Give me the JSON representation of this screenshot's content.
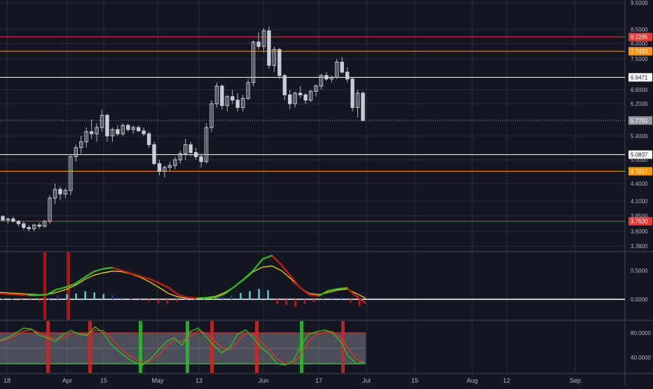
{
  "colors": {
    "background": "#131722",
    "grid": "#2a2e39",
    "candle": "#c8ccd6",
    "wick": "#b2b5be",
    "red_level": "#e53935",
    "orange_level": "#ff9800",
    "white_level": "#ffffff",
    "gray_level": "#9598a1",
    "axis_text": "#b2b5be",
    "macd_line": "#2bc21a",
    "signal_line": "#f5d000",
    "cross_red": "#d01010",
    "hist_pos_strong": "#5fd0e0",
    "hist_pos_weak": "#1f3fb0",
    "hist_neg": "#d01818",
    "stoch_k": "#2bc21a",
    "stoch_d": "#e03030",
    "stoch_band": "#7a7e88",
    "vbar_red": "#c62828",
    "vbar_green": "#2eb82e"
  },
  "chart_data": [
    {
      "type": "candlestick",
      "title": "",
      "x_tick_labels": [
        "18",
        "Apr",
        "15",
        "May",
        "13",
        "Jun",
        "17",
        "Jul",
        "15",
        "Aug",
        "12",
        "Sep"
      ],
      "y_tick_labels": [
        "9.5000",
        "8.5000",
        "8.0000",
        "7.5000",
        "6.6000",
        "6.2000",
        "5.4000",
        "5.0000",
        "4.4000",
        "4.1000",
        "3.8500",
        "3.6000",
        "3.3800"
      ],
      "y_tick_values": [
        9.5,
        8.5,
        8.0,
        7.5,
        6.6,
        6.2,
        5.4,
        5.0,
        4.4,
        4.1,
        3.85,
        3.6,
        3.38
      ],
      "last_price": 5.7701,
      "last_price_label": "5.7701",
      "horizontal_levels": [
        {
          "value": 8.2285,
          "label": "8.2285",
          "color": "red"
        },
        {
          "value": 7.7433,
          "label": "7.7433",
          "color": "orange"
        },
        {
          "value": 6.9471,
          "label": "6.9471",
          "color": "white"
        },
        {
          "value": 5.0837,
          "label": "5.0837",
          "color": "white"
        },
        {
          "value": 4.7017,
          "label": "4.7017",
          "color": "orange"
        },
        {
          "value": 3.762,
          "label": "3.7620",
          "color": "red"
        }
      ],
      "ohlc": [
        [
          3.84,
          3.86,
          3.76,
          3.78
        ],
        [
          3.78,
          3.82,
          3.72,
          3.8
        ],
        [
          3.8,
          3.84,
          3.74,
          3.76
        ],
        [
          3.76,
          3.78,
          3.68,
          3.72
        ],
        [
          3.72,
          3.76,
          3.62,
          3.66
        ],
        [
          3.66,
          3.7,
          3.6,
          3.64
        ],
        [
          3.64,
          3.72,
          3.6,
          3.7
        ],
        [
          3.7,
          3.74,
          3.64,
          3.68
        ],
        [
          3.68,
          3.78,
          3.66,
          3.76
        ],
        [
          3.76,
          4.2,
          3.72,
          4.15
        ],
        [
          4.15,
          4.4,
          4.05,
          4.3
        ],
        [
          4.3,
          4.35,
          4.12,
          4.22
        ],
        [
          4.22,
          4.32,
          4.15,
          4.28
        ],
        [
          4.28,
          5.1,
          4.2,
          5.05
        ],
        [
          5.05,
          5.25,
          4.95,
          5.2
        ],
        [
          5.2,
          5.4,
          5.1,
          5.3
        ],
        [
          5.3,
          5.6,
          5.2,
          5.5
        ],
        [
          5.5,
          5.8,
          5.35,
          5.45
        ],
        [
          5.45,
          5.7,
          5.3,
          5.6
        ],
        [
          5.6,
          6.05,
          5.5,
          5.9
        ],
        [
          5.9,
          5.95,
          5.3,
          5.4
        ],
        [
          5.4,
          5.6,
          5.3,
          5.55
        ],
        [
          5.55,
          5.65,
          5.4,
          5.45
        ],
        [
          5.45,
          5.7,
          5.4,
          5.65
        ],
        [
          5.65,
          5.7,
          5.5,
          5.55
        ],
        [
          5.55,
          5.65,
          5.45,
          5.6
        ],
        [
          5.6,
          5.65,
          5.5,
          5.52
        ],
        [
          5.52,
          5.6,
          5.4,
          5.45
        ],
        [
          5.45,
          5.5,
          5.2,
          5.25
        ],
        [
          5.25,
          5.3,
          4.85,
          4.9
        ],
        [
          4.9,
          5.0,
          4.6,
          4.7
        ],
        [
          4.7,
          4.85,
          4.55,
          4.8
        ],
        [
          4.8,
          4.95,
          4.7,
          4.85
        ],
        [
          4.85,
          5.05,
          4.75,
          5.0
        ],
        [
          5.0,
          5.15,
          4.9,
          5.1
        ],
        [
          5.1,
          5.35,
          5.0,
          5.25
        ],
        [
          5.25,
          5.3,
          5.05,
          5.12
        ],
        [
          5.12,
          5.2,
          5.0,
          5.05
        ],
        [
          5.05,
          5.1,
          4.8,
          4.95
        ],
        [
          4.95,
          5.7,
          4.9,
          5.6
        ],
        [
          5.6,
          6.3,
          5.5,
          6.2
        ],
        [
          6.2,
          6.8,
          6.1,
          6.7
        ],
        [
          6.7,
          6.75,
          6.05,
          6.15
        ],
        [
          6.15,
          6.45,
          6.0,
          6.4
        ],
        [
          6.4,
          6.6,
          6.2,
          6.3
        ],
        [
          6.3,
          6.5,
          6.0,
          6.1
        ],
        [
          6.1,
          6.45,
          6.0,
          6.35
        ],
        [
          6.35,
          6.9,
          6.3,
          6.8
        ],
        [
          6.8,
          8.1,
          6.7,
          8.05
        ],
        [
          8.05,
          8.4,
          7.8,
          7.9
        ],
        [
          7.9,
          8.55,
          7.7,
          8.45
        ],
        [
          8.45,
          8.6,
          7.2,
          7.3
        ],
        [
          7.3,
          7.9,
          7.1,
          7.8
        ],
        [
          7.8,
          7.85,
          6.9,
          7.0
        ],
        [
          7.0,
          7.05,
          6.3,
          6.45
        ],
        [
          6.45,
          6.6,
          6.05,
          6.2
        ],
        [
          6.2,
          6.55,
          6.1,
          6.5
        ],
        [
          6.5,
          6.7,
          6.35,
          6.45
        ],
        [
          6.45,
          6.5,
          6.2,
          6.3
        ],
        [
          6.3,
          6.6,
          6.25,
          6.55
        ],
        [
          6.55,
          6.75,
          6.4,
          6.7
        ],
        [
          6.7,
          7.05,
          6.6,
          7.0
        ],
        [
          7.0,
          7.1,
          6.85,
          6.9
        ],
        [
          6.9,
          7.0,
          6.8,
          6.95
        ],
        [
          6.95,
          7.5,
          6.9,
          7.4
        ],
        [
          7.4,
          7.55,
          7.05,
          7.1
        ],
        [
          7.1,
          7.25,
          6.8,
          6.9
        ],
        [
          6.9,
          6.95,
          6.0,
          6.1
        ],
        [
          6.1,
          6.6,
          5.85,
          6.5
        ],
        [
          6.5,
          6.55,
          5.75,
          5.77
        ]
      ]
    },
    {
      "type": "line",
      "title": "",
      "indicator": "MACD",
      "y_tick_labels": [
        "0.5000",
        "0.0000"
      ],
      "y_tick_values": [
        0.5,
        0.0
      ],
      "series": [
        {
          "color": "green",
          "values": [
            0.1,
            0.09,
            0.08,
            0.07,
            0.07,
            0.08,
            0.17,
            0.21,
            0.27,
            0.38,
            0.48,
            0.53,
            0.55,
            0.5,
            0.45,
            0.4,
            0.35,
            0.28,
            0.2,
            0.08,
            0.03,
            0.02,
            0.02,
            0.03,
            0.1,
            0.22,
            0.35,
            0.5,
            0.7,
            0.76,
            0.6,
            0.4,
            0.2,
            0.08,
            0.06,
            0.15,
            0.18,
            0.2,
            0.05,
            -0.07
          ]
        },
        {
          "color": "yellow",
          "values": [
            0.12,
            0.11,
            0.1,
            0.09,
            0.08,
            0.08,
            0.12,
            0.17,
            0.24,
            0.34,
            0.42,
            0.46,
            0.49,
            0.48,
            0.44,
            0.38,
            0.3,
            0.2,
            0.1,
            0.04,
            0.02,
            0.02,
            0.03,
            0.05,
            0.12,
            0.22,
            0.34,
            0.48,
            0.56,
            0.58,
            0.5,
            0.36,
            0.2,
            0.1,
            0.08,
            0.12,
            0.16,
            0.18,
            0.1,
            0.02
          ]
        }
      ],
      "histogram": [
        0.01,
        0.01,
        -0.01,
        -0.02,
        -0.03,
        0.0,
        0.07,
        0.09,
        0.1,
        0.14,
        0.12,
        0.09,
        0.07,
        0.04,
        0.01,
        -0.01,
        -0.04,
        -0.07,
        -0.08,
        -0.04,
        0.0,
        0.01,
        0.01,
        0.02,
        0.04,
        0.07,
        0.11,
        0.14,
        0.18,
        0.16,
        -0.08,
        -0.1,
        -0.13,
        -0.08,
        -0.05,
        0.02,
        0.03,
        0.04,
        -0.06,
        -0.12
      ]
    },
    {
      "type": "line",
      "title": "",
      "indicator": "Stochastic",
      "y_tick_labels": [
        "80.0000",
        "40.0000"
      ],
      "y_tick_values": [
        80,
        40
      ],
      "band": [
        30,
        80
      ],
      "series": [
        {
          "color": "green",
          "values": [
            68,
            72,
            80,
            88,
            86,
            76,
            72,
            66,
            78,
            84,
            78,
            76,
            90,
            80,
            62,
            50,
            40,
            32,
            28,
            38,
            52,
            66,
            72,
            60,
            82,
            88,
            74,
            60,
            48,
            56,
            78,
            85,
            72,
            56,
            46,
            30,
            28,
            34,
            60,
            78,
            82,
            85,
            80,
            66,
            42,
            30,
            33
          ]
        },
        {
          "color": "red",
          "values": [
            66,
            70,
            76,
            83,
            85,
            80,
            74,
            70,
            72,
            80,
            80,
            78,
            84,
            84,
            72,
            58,
            46,
            38,
            32,
            34,
            44,
            58,
            68,
            66,
            74,
            84,
            80,
            68,
            56,
            52,
            66,
            80,
            78,
            64,
            52,
            38,
            30,
            30,
            46,
            66,
            78,
            82,
            82,
            72,
            54,
            38,
            32
          ]
        }
      ]
    }
  ]
}
